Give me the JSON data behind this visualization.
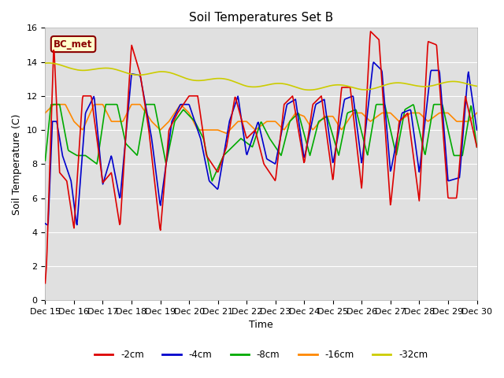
{
  "title": "Soil Temperatures Set B",
  "xlabel": "Time",
  "ylabel": "Soil Temperature (C)",
  "ylim": [
    0,
    16
  ],
  "yticks": [
    0,
    2,
    4,
    6,
    8,
    10,
    12,
    14,
    16
  ],
  "bg_color": "#e0e0e0",
  "annotation_text": "BC_met",
  "annotation_bg": "#ffffcc",
  "annotation_border": "#8b0000",
  "series": {
    "-2cm": {
      "color": "#dd0000",
      "linewidth": 1.2
    },
    "-4cm": {
      "color": "#0000cc",
      "linewidth": 1.2
    },
    "-8cm": {
      "color": "#00aa00",
      "linewidth": 1.2
    },
    "-16cm": {
      "color": "#ff8800",
      "linewidth": 1.2
    },
    "-32cm": {
      "color": "#cccc00",
      "linewidth": 1.2
    }
  },
  "xtick_labels": [
    "Dec 15",
    "Dec 16",
    "Dec 17",
    "Dec 18",
    "Dec 19",
    "Dec 20",
    "Dec 21",
    "Dec 22",
    "Dec 23",
    "Dec 24",
    "Dec 25",
    "Dec 26",
    "Dec 27",
    "Dec 28",
    "Dec 29",
    "Dec 30"
  ],
  "legend_labels": [
    "-2cm",
    "-4cm",
    "-8cm",
    "-16cm",
    "-32cm"
  ]
}
